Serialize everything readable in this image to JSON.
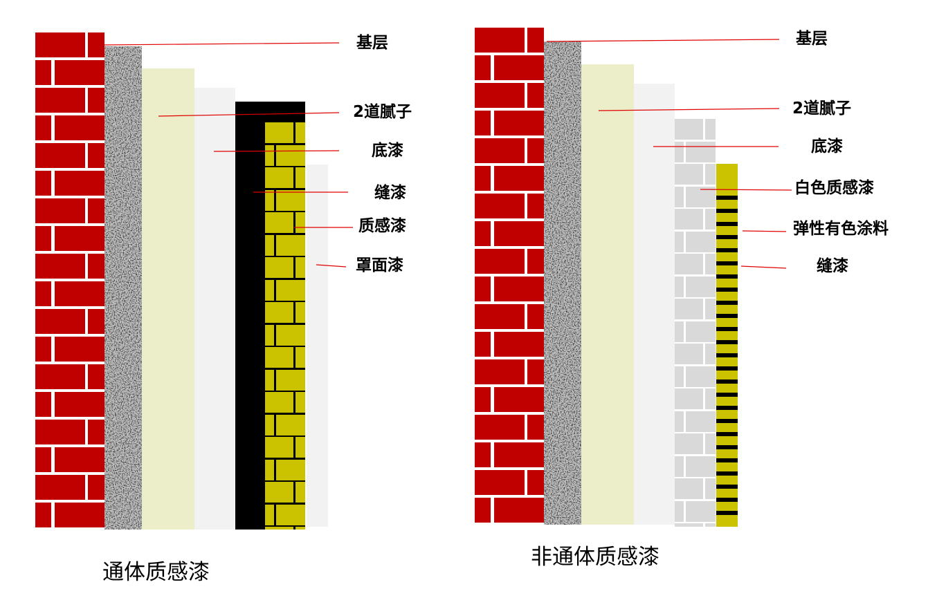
{
  "left_diagram": {
    "caption": "通体质感漆",
    "labels": [
      "基层",
      "2道腻子",
      "底漆",
      "缝漆",
      "质感漆",
      "罩面漆"
    ]
  },
  "right_diagram": {
    "caption": "非通体质感漆",
    "labels": [
      "基层",
      "2道腻子",
      "底漆",
      "白色质感漆",
      "弹性有色涂料",
      "缝漆"
    ]
  },
  "colors": {
    "brick": "#c00000",
    "putty": "#ecedc9",
    "primer": "#f2f2f2",
    "texture_yellow": "#cbc200",
    "white_texture_gray": "#d9d9d9",
    "joint_paint": "#000000",
    "leader_line": "#e00000"
  }
}
